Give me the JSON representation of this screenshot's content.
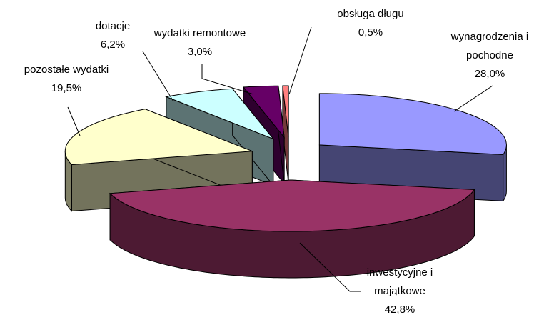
{
  "chart_data": {
    "type": "pie",
    "categories": [
      "wynagrodzenia i pochodne",
      "inwestycyjne i majątkowe",
      "pozostałe wydatki",
      "dotacje",
      "wydatki remontowe",
      "obsługa długu"
    ],
    "values": [
      28.0,
      42.8,
      19.5,
      6.2,
      3.0,
      0.5
    ],
    "value_labels": [
      "28,0%",
      "42,8%",
      "19,5%",
      "6,2%",
      "3,0%",
      "0,5%"
    ],
    "colors": [
      "#9999ff",
      "#993366",
      "#ffffcc",
      "#ccffff",
      "#660066",
      "#ff8080"
    ]
  }
}
